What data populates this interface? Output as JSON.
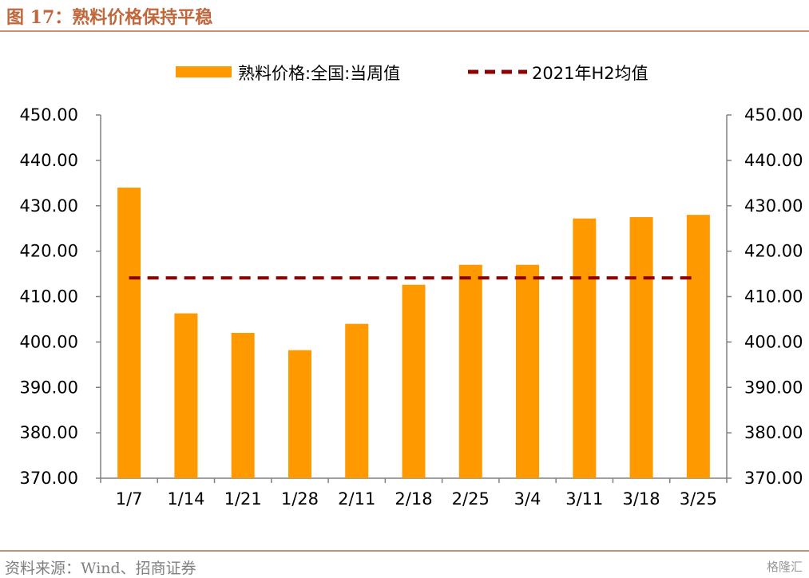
{
  "figure_title": "图 17：熟料价格保持平稳",
  "source_note": "资料来源：Wind、招商证券",
  "watermark": "格隆汇",
  "chart_data": {
    "type": "bar",
    "categories": [
      "1/7",
      "1/14",
      "1/21",
      "1/28",
      "2/11",
      "2/18",
      "2/25",
      "3/4",
      "3/11",
      "3/18",
      "3/25"
    ],
    "series": [
      {
        "name": "熟料价格:全国:当周值",
        "type": "bar",
        "color": "#FF9900",
        "values": [
          434.0,
          406.3,
          402.0,
          398.2,
          404.0,
          412.6,
          417.0,
          417.0,
          427.2,
          427.5,
          428.0
        ]
      },
      {
        "name": "2021年H2均值",
        "type": "line",
        "style": "dashed",
        "color": "#8B0000",
        "values": [
          414.1,
          414.1,
          414.1,
          414.1,
          414.1,
          414.1,
          414.1,
          414.1,
          414.1,
          414.1,
          414.1
        ]
      }
    ],
    "yticks": [
      "370.00",
      "380.00",
      "390.00",
      "400.00",
      "410.00",
      "420.00",
      "430.00",
      "440.00",
      "450.00"
    ],
    "ylim": [
      370,
      450
    ],
    "y2lim": [
      370,
      450
    ],
    "legend_position": "top",
    "grid": false
  }
}
